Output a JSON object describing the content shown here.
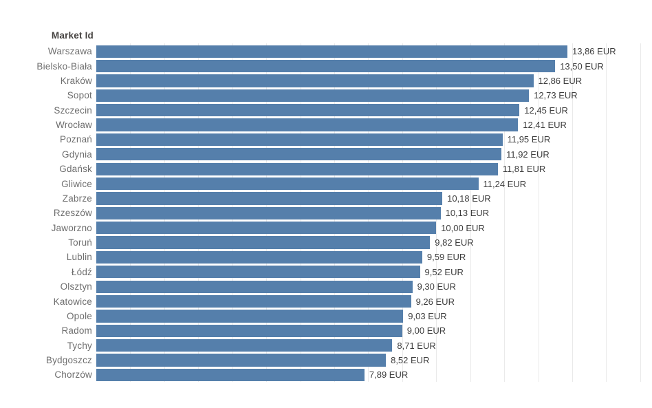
{
  "chart_data": {
    "type": "bar",
    "orientation": "horizontal",
    "title": "Market Id",
    "unit": "EUR",
    "categories": [
      "Warszawa",
      "Bielsko-Biała",
      "Kraków",
      "Sopot",
      "Szczecin",
      "Wrocław",
      "Poznań",
      "Gdynia",
      "Gdańsk",
      "Gliwice",
      "Zabrze",
      "Rzeszów",
      "Jaworzno",
      "Toruń",
      "Lublin",
      "Łódź",
      "Olsztyn",
      "Katowice",
      "Opole",
      "Radom",
      "Tychy",
      "Bydgoszcz",
      "Chorzów"
    ],
    "values": [
      13.86,
      13.5,
      12.86,
      12.73,
      12.45,
      12.41,
      11.95,
      11.92,
      11.81,
      11.24,
      10.18,
      10.13,
      10.0,
      9.82,
      9.59,
      9.52,
      9.3,
      9.26,
      9.03,
      9.0,
      8.71,
      8.52,
      7.89
    ],
    "labels": [
      "13,86 EUR",
      "13,50 EUR",
      "12,86 EUR",
      "12,73 EUR",
      "12,45 EUR",
      "12,41 EUR",
      "11,95 EUR",
      "11,92 EUR",
      "11,81 EUR",
      "11,24 EUR",
      "10,18 EUR",
      "10,13 EUR",
      "10,00 EUR",
      "9,82 EUR",
      "9,59 EUR",
      "9,52 EUR",
      "9,30 EUR",
      "9,26 EUR",
      "9,03 EUR",
      "9,00 EUR",
      "8,71 EUR",
      "8,52 EUR",
      "7,89 EUR"
    ],
    "xlim": [
      0,
      16.3
    ],
    "grid_interval": 1,
    "bar_color": "#557fab",
    "gridline_color": "#eaeaea",
    "category_label_color": "#6e6e6e",
    "value_label_color": "#3d3d3d",
    "legend": "none",
    "value_label_position": "end-of-bar"
  }
}
